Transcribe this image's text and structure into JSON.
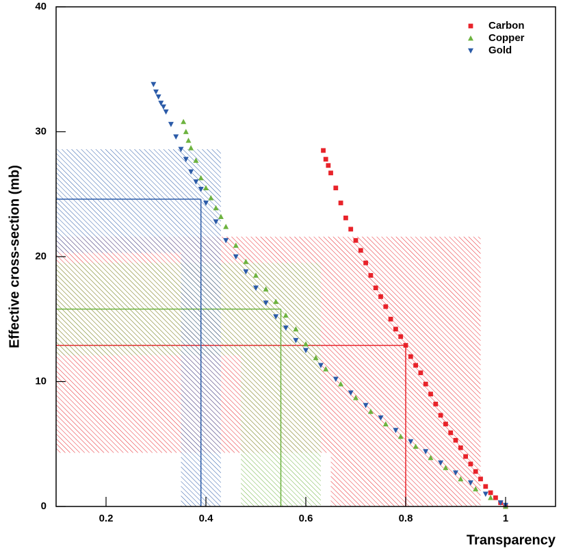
{
  "chart_data": {
    "type": "scatter",
    "xlabel": "Transparency",
    "ylabel": "Effective cross-section (mb)",
    "xlim": [
      0.1,
      1.1
    ],
    "ylim": [
      0,
      40
    ],
    "xticks": [
      0.2,
      0.4,
      0.6,
      0.8,
      1
    ],
    "yticks": [
      0,
      10,
      20,
      30,
      40
    ],
    "grid": false,
    "legend": "upper right",
    "series": [
      {
        "name": "Carbon",
        "color": "#e8232a",
        "marker": "square",
        "x": [
          0.635,
          0.64,
          0.645,
          0.65,
          0.66,
          0.67,
          0.68,
          0.69,
          0.7,
          0.71,
          0.72,
          0.73,
          0.74,
          0.75,
          0.76,
          0.77,
          0.78,
          0.79,
          0.8,
          0.81,
          0.82,
          0.83,
          0.84,
          0.85,
          0.86,
          0.87,
          0.88,
          0.89,
          0.9,
          0.91,
          0.92,
          0.93,
          0.94,
          0.95,
          0.96,
          0.97,
          0.98,
          0.99,
          1.0
        ],
        "values": [
          28.5,
          27.8,
          27.3,
          26.7,
          25.5,
          24.3,
          23.1,
          22.2,
          21.3,
          20.5,
          19.5,
          18.5,
          17.5,
          16.8,
          16.0,
          15.0,
          14.2,
          13.6,
          12.9,
          12.0,
          11.3,
          10.7,
          9.8,
          9.0,
          8.2,
          7.3,
          6.6,
          5.9,
          5.3,
          4.7,
          4.0,
          3.4,
          2.8,
          2.2,
          1.6,
          1.1,
          0.7,
          0.3,
          0.0
        ],
        "measurement": {
          "x": 0.8,
          "xlo": 0.65,
          "xhi": 0.95,
          "y": 12.9,
          "ylo": 4.3,
          "yhi": 21.6
        }
      },
      {
        "name": "Copper",
        "color": "#6db33f",
        "marker": "triangle-up",
        "x": [
          0.355,
          0.36,
          0.365,
          0.37,
          0.38,
          0.39,
          0.4,
          0.41,
          0.42,
          0.43,
          0.44,
          0.46,
          0.48,
          0.5,
          0.52,
          0.54,
          0.56,
          0.58,
          0.6,
          0.62,
          0.64,
          0.67,
          0.7,
          0.73,
          0.76,
          0.79,
          0.82,
          0.85,
          0.88,
          0.91,
          0.94,
          0.97,
          1.0
        ],
        "values": [
          30.8,
          30.0,
          29.3,
          28.7,
          27.7,
          26.3,
          25.5,
          24.7,
          23.9,
          23.2,
          22.4,
          20.9,
          19.6,
          18.5,
          17.4,
          16.4,
          15.3,
          14.2,
          13.0,
          11.9,
          11.0,
          9.8,
          8.7,
          7.6,
          6.6,
          5.6,
          4.8,
          3.9,
          3.1,
          2.2,
          1.4,
          0.7,
          0.0
        ],
        "measurement": {
          "x": 0.55,
          "xlo": 0.47,
          "xhi": 0.63,
          "y": 15.8,
          "ylo": 12.1,
          "yhi": 19.5
        }
      },
      {
        "name": "Gold",
        "color": "#2b5ba8",
        "marker": "triangle-down",
        "x": [
          0.295,
          0.3,
          0.305,
          0.31,
          0.315,
          0.32,
          0.33,
          0.34,
          0.35,
          0.36,
          0.37,
          0.38,
          0.39,
          0.4,
          0.42,
          0.44,
          0.46,
          0.48,
          0.5,
          0.52,
          0.54,
          0.56,
          0.58,
          0.6,
          0.63,
          0.66,
          0.69,
          0.72,
          0.75,
          0.78,
          0.81,
          0.84,
          0.87,
          0.9,
          0.93,
          0.96,
          0.99,
          1.0
        ],
        "values": [
          33.8,
          33.2,
          32.8,
          32.3,
          32.0,
          31.6,
          30.6,
          29.6,
          28.6,
          27.8,
          26.8,
          26.0,
          25.4,
          24.3,
          22.8,
          21.3,
          20.0,
          18.8,
          17.5,
          16.3,
          15.2,
          14.3,
          13.3,
          12.5,
          11.3,
          10.2,
          9.1,
          8.1,
          7.1,
          6.1,
          5.2,
          4.4,
          3.5,
          2.7,
          1.9,
          1.0,
          0.3,
          0.1
        ],
        "measurement": {
          "x": 0.39,
          "xlo": 0.35,
          "xhi": 0.43,
          "y": 24.6,
          "ylo": 20.3,
          "yhi": 28.6
        }
      }
    ]
  }
}
